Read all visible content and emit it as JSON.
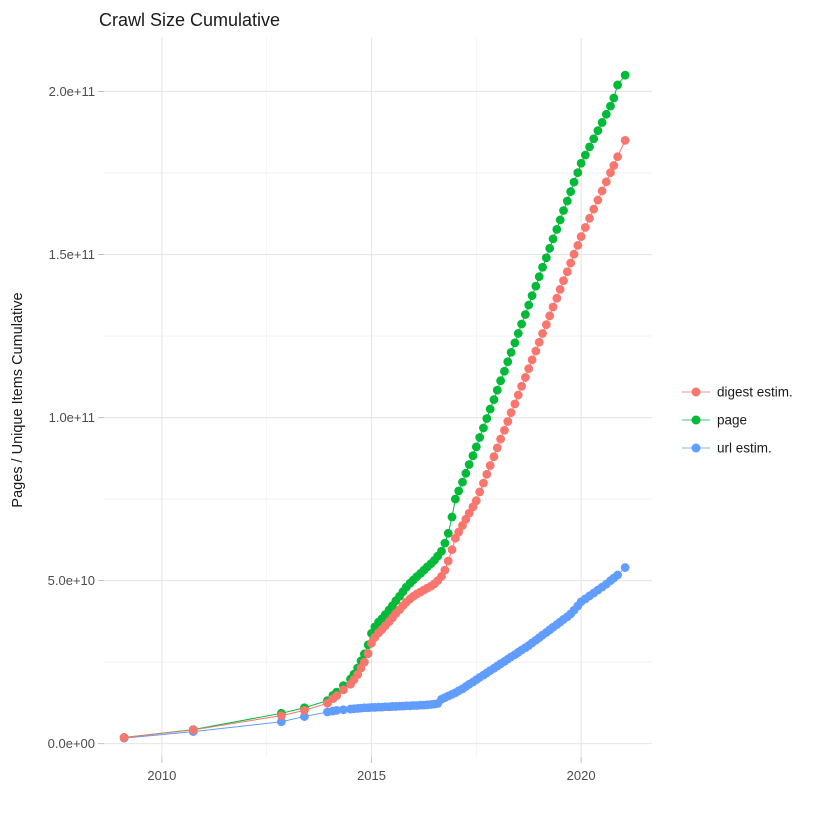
{
  "page": {
    "background": "#FFFFFF"
  },
  "chart_data": {
    "type": "scatter",
    "title": "Crawl Size Cumulative",
    "xlabel": "",
    "ylabel": "Pages / Unique Items Cumulative",
    "legend_position": "right",
    "grid": true,
    "xlim": [
      2008.62,
      2021.69
    ],
    "ylim": [
      -4100000000.0,
      216400000000.0
    ],
    "x_ticks": [
      {
        "value": 2010,
        "label": "2010"
      },
      {
        "value": 2015,
        "label": "2015"
      },
      {
        "value": 2020,
        "label": "2020"
      }
    ],
    "x_minor": [
      2012.5,
      2017.5
    ],
    "y_ticks": [
      {
        "value": 0,
        "label": "0.0e+00"
      },
      {
        "value": 50000000000.0,
        "label": "5.0e+10"
      },
      {
        "value": 100000000000.0,
        "label": "1.0e+11"
      },
      {
        "value": 150000000000.0,
        "label": "1.5e+11"
      },
      {
        "value": 200000000000.0,
        "label": "2.0e+11"
      }
    ],
    "y_minor": [
      25000000000.0,
      75000000000.0,
      125000000000.0,
      175000000000.0
    ],
    "colors": {
      "grid_major": "#E6E6E6",
      "grid_minor": "#F2F2F2",
      "tick": "#C2C2C2",
      "tick_label": "#4D4D4D",
      "text": "#1A1A1A",
      "background": "#FFFFFF"
    },
    "series": [
      {
        "name": "digest estim.",
        "color": "#F8766D",
        "points": [
          [
            2009.1,
            1850000000.0
          ],
          [
            2010.75,
            4200000000.0
          ],
          [
            2012.85,
            8600000000.0
          ],
          [
            2013.4,
            10200000000.0
          ],
          [
            2013.95,
            12400000000.0
          ],
          [
            2014.08,
            13800000000.0
          ],
          [
            2014.17,
            14700000000.0
          ],
          [
            2014.33,
            16500000000.0
          ],
          [
            2014.5,
            18200000000.0
          ],
          [
            2014.58,
            19600000000.0
          ],
          [
            2014.67,
            21200000000.0
          ],
          [
            2014.75,
            23200000000.0
          ],
          [
            2014.83,
            25000000000.0
          ],
          [
            2014.92,
            27600000000.0
          ],
          [
            2015,
            30800000000.0
          ],
          [
            2015.08,
            32600000000.0
          ],
          [
            2015.17,
            34000000000.0
          ],
          [
            2015.25,
            35000000000.0
          ],
          [
            2015.33,
            36200000000.0
          ],
          [
            2015.42,
            37400000000.0
          ],
          [
            2015.5,
            38600000000.0
          ],
          [
            2015.58,
            39900000000.0
          ],
          [
            2015.67,
            41100000000.0
          ],
          [
            2015.75,
            42300000000.0
          ],
          [
            2015.83,
            43400000000.0
          ],
          [
            2015.92,
            44400000000.0
          ],
          [
            2016,
            45200000000.0
          ],
          [
            2016.08,
            45900000000.0
          ],
          [
            2016.17,
            46500000000.0
          ],
          [
            2016.25,
            47100000000.0
          ],
          [
            2016.33,
            47700000000.0
          ],
          [
            2016.42,
            48300000000.0
          ],
          [
            2016.5,
            49000000000.0
          ],
          [
            2016.58,
            50000000000.0
          ],
          [
            2016.67,
            51300000000.0
          ],
          [
            2016.75,
            53200000000.0
          ],
          [
            2016.83,
            56000000000.0
          ],
          [
            2016.92,
            59500000000.0
          ],
          [
            2017,
            63000000000.0
          ],
          [
            2017.08,
            64900000000.0
          ],
          [
            2017.17,
            66900000000.0
          ],
          [
            2017.25,
            68800000000.0
          ],
          [
            2017.33,
            70700000000.0
          ],
          [
            2017.42,
            72600000000.0
          ],
          [
            2017.5,
            74500000000.0
          ],
          [
            2017.58,
            77200000000.0
          ],
          [
            2017.67,
            79900000000.0
          ],
          [
            2017.75,
            82600000000.0
          ],
          [
            2017.83,
            85300000000.0
          ],
          [
            2017.92,
            88000000000.0
          ],
          [
            2018,
            90700000000.0
          ],
          [
            2018.08,
            93400000000.0
          ],
          [
            2018.17,
            96100000000.0
          ],
          [
            2018.25,
            98800000000.0
          ],
          [
            2018.33,
            101500000000.0
          ],
          [
            2018.42,
            104200000000.0
          ],
          [
            2018.5,
            106900000000.0
          ],
          [
            2018.58,
            109600000000.0
          ],
          [
            2018.67,
            112300000000.0
          ],
          [
            2018.75,
            115000000000.0
          ],
          [
            2018.83,
            117700000000.0
          ],
          [
            2018.92,
            120400000000.0
          ],
          [
            2019,
            123100000000.0
          ],
          [
            2019.08,
            125800000000.0
          ],
          [
            2019.17,
            128500000000.0
          ],
          [
            2019.25,
            131200000000.0
          ],
          [
            2019.33,
            133900000000.0
          ],
          [
            2019.42,
            136600000000.0
          ],
          [
            2019.5,
            139300000000.0
          ],
          [
            2019.58,
            142000000000.0
          ],
          [
            2019.67,
            144700000000.0
          ],
          [
            2019.75,
            147400000000.0
          ],
          [
            2019.83,
            150100000000.0
          ],
          [
            2019.92,
            152800000000.0
          ],
          [
            2020,
            155500000000.0
          ],
          [
            2020.1,
            158300000000.0
          ],
          [
            2020.2,
            161100000000.0
          ],
          [
            2020.3,
            163900000000.0
          ],
          [
            2020.4,
            166700000000.0
          ],
          [
            2020.5,
            169500000000.0
          ],
          [
            2020.6,
            172300000000.0
          ],
          [
            2020.7,
            175100000000.0
          ],
          [
            2020.78,
            177300000000.0
          ],
          [
            2020.87,
            180000000000.0
          ],
          [
            2021.05,
            185000000000.0
          ]
        ]
      },
      {
        "name": "page",
        "color": "#00BA38",
        "points": [
          [
            2009.1,
            1900000000.0
          ],
          [
            2010.75,
            4300000000.0
          ],
          [
            2012.85,
            9300000000.0
          ],
          [
            2013.4,
            11000000000.0
          ],
          [
            2013.95,
            13200000000.0
          ],
          [
            2014.08,
            14800000000.0
          ],
          [
            2014.17,
            15800000000.0
          ],
          [
            2014.33,
            17800000000.0
          ],
          [
            2014.5,
            19800000000.0
          ],
          [
            2014.58,
            21300000000.0
          ],
          [
            2014.67,
            23200000000.0
          ],
          [
            2014.75,
            25400000000.0
          ],
          [
            2014.83,
            27500000000.0
          ],
          [
            2014.92,
            30300000000.0
          ],
          [
            2015,
            33800000000.0
          ],
          [
            2015.08,
            35800000000.0
          ],
          [
            2015.17,
            37300000000.0
          ],
          [
            2015.25,
            38300000000.0
          ],
          [
            2015.33,
            39600000000.0
          ],
          [
            2015.42,
            41000000000.0
          ],
          [
            2015.5,
            42300000000.0
          ],
          [
            2015.58,
            43800000000.0
          ],
          [
            2015.67,
            45200000000.0
          ],
          [
            2015.75,
            46600000000.0
          ],
          [
            2015.83,
            48000000000.0
          ],
          [
            2015.92,
            49200000000.0
          ],
          [
            2016,
            50200000000.0
          ],
          [
            2016.08,
            51200000000.0
          ],
          [
            2016.17,
            52200000000.0
          ],
          [
            2016.25,
            53200000000.0
          ],
          [
            2016.33,
            54200000000.0
          ],
          [
            2016.42,
            55200000000.0
          ],
          [
            2016.5,
            56200000000.0
          ],
          [
            2016.58,
            57500000000.0
          ],
          [
            2016.67,
            59000000000.0
          ],
          [
            2016.75,
            61500000000.0
          ],
          [
            2016.83,
            64500000000.0
          ],
          [
            2016.92,
            69500000000.0
          ],
          [
            2017,
            75000000000.0
          ],
          [
            2017.08,
            77500000000.0
          ],
          [
            2017.17,
            80200000000.0
          ],
          [
            2017.25,
            82900000000.0
          ],
          [
            2017.33,
            85600000000.0
          ],
          [
            2017.42,
            88300000000.0
          ],
          [
            2017.5,
            91000000000.0
          ],
          [
            2017.58,
            93900000000.0
          ],
          [
            2017.67,
            96800000000.0
          ],
          [
            2017.75,
            99700000000.0
          ],
          [
            2017.83,
            102600000000.0
          ],
          [
            2017.92,
            105500000000.0
          ],
          [
            2018,
            108400000000.0
          ],
          [
            2018.08,
            111300000000.0
          ],
          [
            2018.17,
            114200000000.0
          ],
          [
            2018.25,
            117100000000.0
          ],
          [
            2018.33,
            120000000000.0
          ],
          [
            2018.42,
            122900000000.0
          ],
          [
            2018.5,
            125800000000.0
          ],
          [
            2018.58,
            128700000000.0
          ],
          [
            2018.67,
            131600000000.0
          ],
          [
            2018.75,
            134500000000.0
          ],
          [
            2018.83,
            137400000000.0
          ],
          [
            2018.92,
            140300000000.0
          ],
          [
            2019,
            143200000000.0
          ],
          [
            2019.08,
            146100000000.0
          ],
          [
            2019.17,
            149000000000.0
          ],
          [
            2019.25,
            151900000000.0
          ],
          [
            2019.33,
            154800000000.0
          ],
          [
            2019.42,
            157700000000.0
          ],
          [
            2019.5,
            160600000000.0
          ],
          [
            2019.58,
            163500000000.0
          ],
          [
            2019.67,
            166400000000.0
          ],
          [
            2019.75,
            169300000000.0
          ],
          [
            2019.83,
            172200000000.0
          ],
          [
            2019.92,
            175100000000.0
          ],
          [
            2020,
            178000000000.0
          ],
          [
            2020.1,
            180500000000.0
          ],
          [
            2020.2,
            183000000000.0
          ],
          [
            2020.3,
            185500000000.0
          ],
          [
            2020.4,
            188000000000.0
          ],
          [
            2020.5,
            190500000000.0
          ],
          [
            2020.6,
            193000000000.0
          ],
          [
            2020.7,
            195500000000.0
          ],
          [
            2020.78,
            198000000000.0
          ],
          [
            2020.87,
            202000000000.0
          ],
          [
            2021.05,
            205000000000.0
          ]
        ]
      },
      {
        "name": "url estim.",
        "color": "#619CFF",
        "points": [
          [
            2009.1,
            1700000000.0
          ],
          [
            2010.75,
            3700000000.0
          ],
          [
            2012.85,
            6700000000.0
          ],
          [
            2013.4,
            8300000000.0
          ],
          [
            2013.95,
            9700000000.0
          ],
          [
            2014.08,
            10000000000.0
          ],
          [
            2014.17,
            10200000000.0
          ],
          [
            2014.33,
            10400000000.0
          ],
          [
            2014.5,
            10600000000.0
          ],
          [
            2014.58,
            10700000000.0
          ],
          [
            2014.67,
            10800000000.0
          ],
          [
            2014.75,
            10900000000.0
          ],
          [
            2014.83,
            11000000000.0
          ],
          [
            2014.92,
            11000000000.0
          ],
          [
            2015,
            11100000000.0
          ],
          [
            2015.08,
            11100000000.0
          ],
          [
            2015.17,
            11200000000.0
          ],
          [
            2015.25,
            11200000000.0
          ],
          [
            2015.33,
            11300000000.0
          ],
          [
            2015.42,
            11300000000.0
          ],
          [
            2015.5,
            11400000000.0
          ],
          [
            2015.58,
            11400000000.0
          ],
          [
            2015.67,
            11500000000.0
          ],
          [
            2015.75,
            11500000000.0
          ],
          [
            2015.83,
            11600000000.0
          ],
          [
            2015.92,
            11600000000.0
          ],
          [
            2016,
            11700000000.0
          ],
          [
            2016.08,
            11700000000.0
          ],
          [
            2016.17,
            11800000000.0
          ],
          [
            2016.25,
            11800000000.0
          ],
          [
            2016.33,
            11900000000.0
          ],
          [
            2016.42,
            12000000000.0
          ],
          [
            2016.5,
            12100000000.0
          ],
          [
            2016.58,
            12300000000.0
          ],
          [
            2016.67,
            13600000000.0
          ],
          [
            2016.75,
            14100000000.0
          ],
          [
            2016.83,
            14600000000.0
          ],
          [
            2016.92,
            15100000000.0
          ],
          [
            2017,
            15600000000.0
          ],
          [
            2017.08,
            16200000000.0
          ],
          [
            2017.17,
            16800000000.0
          ],
          [
            2017.25,
            17500000000.0
          ],
          [
            2017.33,
            18200000000.0
          ],
          [
            2017.42,
            18900000000.0
          ],
          [
            2017.5,
            19600000000.0
          ],
          [
            2017.58,
            20300000000.0
          ],
          [
            2017.67,
            21000000000.0
          ],
          [
            2017.75,
            21700000000.0
          ],
          [
            2017.83,
            22400000000.0
          ],
          [
            2017.92,
            23100000000.0
          ],
          [
            2018,
            23800000000.0
          ],
          [
            2018.08,
            24500000000.0
          ],
          [
            2018.17,
            25200000000.0
          ],
          [
            2018.25,
            25900000000.0
          ],
          [
            2018.33,
            26600000000.0
          ],
          [
            2018.42,
            27300000000.0
          ],
          [
            2018.5,
            28000000000.0
          ],
          [
            2018.58,
            28700000000.0
          ],
          [
            2018.67,
            29400000000.0
          ],
          [
            2018.75,
            30100000000.0
          ],
          [
            2018.83,
            30900000000.0
          ],
          [
            2018.92,
            31700000000.0
          ],
          [
            2019,
            32500000000.0
          ],
          [
            2019.08,
            33300000000.0
          ],
          [
            2019.17,
            34100000000.0
          ],
          [
            2019.25,
            34900000000.0
          ],
          [
            2019.33,
            35700000000.0
          ],
          [
            2019.42,
            36500000000.0
          ],
          [
            2019.5,
            37300000000.0
          ],
          [
            2019.58,
            38100000000.0
          ],
          [
            2019.67,
            38900000000.0
          ],
          [
            2019.75,
            39800000000.0
          ],
          [
            2019.83,
            40900000000.0
          ],
          [
            2019.92,
            42200000000.0
          ],
          [
            2020,
            43500000000.0
          ],
          [
            2020.1,
            44400000000.0
          ],
          [
            2020.2,
            45300000000.0
          ],
          [
            2020.3,
            46200000000.0
          ],
          [
            2020.4,
            47100000000.0
          ],
          [
            2020.5,
            48000000000.0
          ],
          [
            2020.6,
            48900000000.0
          ],
          [
            2020.7,
            50000000000.0
          ],
          [
            2020.78,
            50800000000.0
          ],
          [
            2020.87,
            51700000000.0
          ],
          [
            2021.05,
            54000000000.0
          ]
        ]
      }
    ]
  }
}
